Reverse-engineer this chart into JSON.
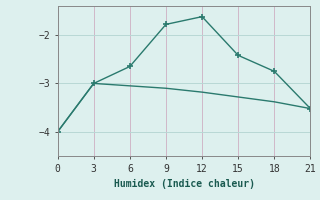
{
  "xlabel": "Humidex (Indice chaleur)",
  "line1_x": [
    0,
    3,
    6,
    9,
    12,
    15,
    18,
    21
  ],
  "line1_y": [
    -4.0,
    -3.0,
    -2.65,
    -1.78,
    -1.62,
    -2.42,
    -2.75,
    -3.52
  ],
  "line2_x": [
    0,
    3,
    6,
    9,
    12,
    15,
    18,
    21
  ],
  "line2_y": [
    -4.0,
    -3.0,
    -3.05,
    -3.1,
    -3.18,
    -3.28,
    -3.38,
    -3.52
  ],
  "line_color": "#2a7a6e",
  "bg_color": "#ddf0ee",
  "grid_color": "#b8d8d5",
  "xlim": [
    0,
    21
  ],
  "ylim": [
    -4.5,
    -1.4
  ],
  "xticks": [
    0,
    3,
    6,
    9,
    12,
    15,
    18,
    21
  ],
  "yticks": [
    -4,
    -3,
    -2
  ],
  "marker": "+",
  "marker_size": 5,
  "lw1": 1.0,
  "lw2": 1.0
}
